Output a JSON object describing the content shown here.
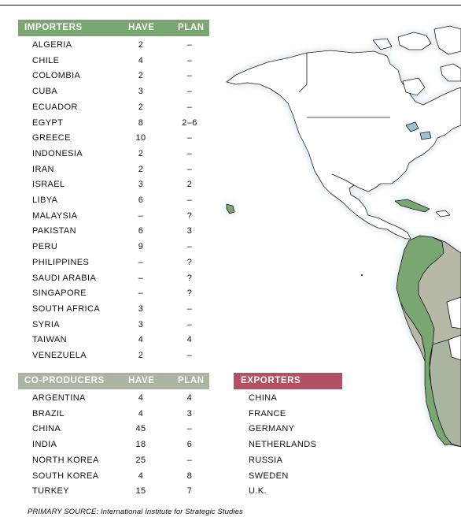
{
  "importers": {
    "header": "IMPORTERS",
    "have_label": "HAVE",
    "plan_label": "PLAN",
    "rows": [
      {
        "name": "ALGERIA",
        "have": "2",
        "plan": "–"
      },
      {
        "name": "CHILE",
        "have": "4",
        "plan": "–"
      },
      {
        "name": "COLOMBIA",
        "have": "2",
        "plan": "–"
      },
      {
        "name": "CUBA",
        "have": "3",
        "plan": "–"
      },
      {
        "name": "ECUADOR",
        "have": "2",
        "plan": "–"
      },
      {
        "name": "EGYPT",
        "have": "8",
        "plan": "2–6"
      },
      {
        "name": "GREECE",
        "have": "10",
        "plan": "–"
      },
      {
        "name": "INDONESIA",
        "have": "2",
        "plan": "–"
      },
      {
        "name": "IRAN",
        "have": "2",
        "plan": "–"
      },
      {
        "name": "ISRAEL",
        "have": "3",
        "plan": "2"
      },
      {
        "name": "LIBYA",
        "have": "6",
        "plan": "–"
      },
      {
        "name": "MALAYSIA",
        "have": "–",
        "plan": "?"
      },
      {
        "name": "PAKISTAN",
        "have": "6",
        "plan": "3"
      },
      {
        "name": "PERU",
        "have": "9",
        "plan": "–"
      },
      {
        "name": "PHILIPPINES",
        "have": "–",
        "plan": "?"
      },
      {
        "name": "SAUDI ARABIA",
        "have": "–",
        "plan": "?"
      },
      {
        "name": "SINGAPORE",
        "have": "–",
        "plan": "?"
      },
      {
        "name": "SOUTH AFRICA",
        "have": "3",
        "plan": "–"
      },
      {
        "name": "SYRIA",
        "have": "3",
        "plan": "–"
      },
      {
        "name": "TAIWAN",
        "have": "4",
        "plan": "4"
      },
      {
        "name": "VENEZUELA",
        "have": "2",
        "plan": "–"
      }
    ]
  },
  "coproducers": {
    "header": "CO-PRODUCERS",
    "have_label": "HAVE",
    "plan_label": "PLAN",
    "rows": [
      {
        "name": "ARGENTINA",
        "have": "4",
        "plan": "4"
      },
      {
        "name": "BRAZIL",
        "have": "4",
        "plan": "3"
      },
      {
        "name": "CHINA",
        "have": "45",
        "plan": "–"
      },
      {
        "name": "INDIA",
        "have": "18",
        "plan": "6"
      },
      {
        "name": "NORTH KOREA",
        "have": "25",
        "plan": "–"
      },
      {
        "name": "SOUTH KOREA",
        "have": "4",
        "plan": "8"
      },
      {
        "name": "TURKEY",
        "have": "15",
        "plan": "7"
      }
    ]
  },
  "exporters": {
    "header": "EXPORTERS",
    "rows": [
      "CHINA",
      "FRANCE",
      "GERMANY",
      "NETHERLANDS",
      "RUSSIA",
      "SWEDEN",
      "U.K."
    ]
  },
  "source": "PRIMARY SOURCE: International Institute for Strategic Studies",
  "colors": {
    "importer": "#7aa672",
    "coproducer": "#a9b5a1",
    "exporter": "#b45064",
    "water_glow": "#dfeaf1",
    "land_white": "#ffffff",
    "lake": "#9cc3cf"
  }
}
